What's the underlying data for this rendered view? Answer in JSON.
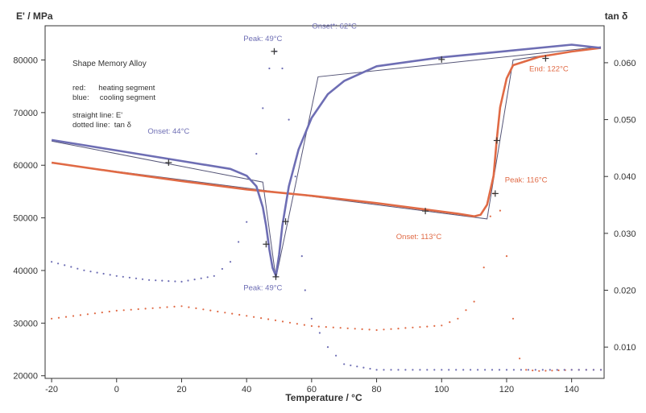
{
  "chart_data": {
    "type": "line",
    "y_left_label": "E' / MPa",
    "y_right_label": "tan δ",
    "xlabel": "Temperature / °C",
    "xlim": [
      -22,
      150
    ],
    "ylim_left": [
      19500,
      86500
    ],
    "ylim_right": [
      0.0045,
      0.0665
    ],
    "x_ticks": [
      -20,
      0,
      20,
      40,
      60,
      80,
      100,
      120,
      140
    ],
    "y_left_ticks": [
      20000,
      30000,
      40000,
      50000,
      60000,
      70000,
      80000
    ],
    "y_right_ticks": [
      0.01,
      0.02,
      0.03,
      0.04,
      0.05,
      0.06
    ],
    "y_left_tick_labels": [
      "20000",
      "30000",
      "40000",
      "50000",
      "60000",
      "70000",
      "80000"
    ],
    "y_right_tick_labels": [
      "0.010",
      "0.020",
      "0.030",
      "0.040",
      "0.050",
      "0.060"
    ],
    "legend": {
      "title": "Shape Memory Alloy",
      "lines": [
        "red:      heating segment",
        "blue:     cooling segment",
        "",
        "straight line: E'",
        "dotted line:  tan δ"
      ]
    },
    "colors": {
      "heating": "#e06a45",
      "cooling": "#6e6eb4",
      "tangent": "#555577"
    },
    "series": [
      {
        "name": "heating E'",
        "x": [
          -20,
          0,
          20,
          40,
          60,
          80,
          95,
          105,
          110,
          112,
          114,
          116,
          117,
          118,
          120,
          122,
          130,
          140,
          149
        ],
        "y": [
          60500,
          58700,
          57000,
          55400,
          54200,
          52800,
          51600,
          50800,
          50300,
          50600,
          52500,
          58000,
          65000,
          71000,
          76500,
          79000,
          80600,
          81600,
          82300
        ]
      },
      {
        "name": "cooling E'",
        "x": [
          -20,
          0,
          20,
          35,
          40,
          43,
          45,
          46,
          47,
          48,
          49,
          50,
          51,
          53,
          56,
          60,
          65,
          70,
          80,
          100,
          120,
          140,
          149
        ],
        "y": [
          64800,
          62800,
          60800,
          59300,
          58000,
          56000,
          52000,
          48500,
          44000,
          40500,
          39000,
          43000,
          48500,
          56000,
          63000,
          69000,
          73500,
          76000,
          78800,
          80500,
          81700,
          82900,
          82300
        ]
      },
      {
        "name": "heating tan δ",
        "x": [
          -20,
          0,
          20,
          40,
          60,
          80,
          100,
          105,
          110,
          113,
          115,
          116,
          118,
          120,
          122,
          124,
          126,
          130,
          140,
          149
        ],
        "y": [
          0.015,
          0.0164,
          0.0172,
          0.0155,
          0.0137,
          0.013,
          0.0138,
          0.015,
          0.018,
          0.024,
          0.033,
          0.037,
          0.034,
          0.026,
          0.015,
          0.008,
          0.006,
          0.0058,
          0.006,
          0.006
        ]
      },
      {
        "name": "cooling tan δ",
        "x": [
          -20,
          -10,
          0,
          10,
          20,
          30,
          35,
          40,
          43,
          45,
          47,
          49,
          51,
          53,
          55,
          57,
          58,
          60,
          65,
          70,
          80,
          100,
          120,
          140,
          149
        ],
        "y": [
          0.025,
          0.0235,
          0.0225,
          0.0218,
          0.0215,
          0.0225,
          0.025,
          0.032,
          0.044,
          0.052,
          0.059,
          0.062,
          0.059,
          0.05,
          0.04,
          0.026,
          0.02,
          0.015,
          0.01,
          0.007,
          0.006,
          0.006,
          0.006,
          0.006,
          0.006
        ]
      }
    ],
    "tangent_lines": [
      {
        "name": "cooling onset tangents",
        "axis": "left",
        "x": [
          -20,
          45,
          49,
          62,
          149
        ],
        "y": [
          64600,
          56800,
          38500,
          76800,
          82500
        ]
      },
      {
        "name": "heating onset tangents",
        "axis": "left",
        "x": [
          -20,
          114,
          122,
          149
        ],
        "y": [
          60400,
          49800,
          80000,
          82400
        ]
      }
    ],
    "markers": [
      {
        "axis": "left",
        "x": 16,
        "y": 60500,
        "color": "#333333"
      },
      {
        "axis": "left",
        "x": 46,
        "y": 45000,
        "color": "#333333"
      },
      {
        "axis": "left",
        "x": 49,
        "y": 38800,
        "color": "#333333"
      },
      {
        "axis": "left",
        "x": 52,
        "y": 49300,
        "color": "#333333"
      },
      {
        "axis": "left",
        "x": 100,
        "y": 80100,
        "color": "#333333"
      },
      {
        "axis": "left",
        "x": 132,
        "y": 80300,
        "color": "#333333"
      },
      {
        "axis": "left",
        "x": 95,
        "y": 51300,
        "color": "#333333"
      },
      {
        "axis": "left",
        "x": 117,
        "y": 64700,
        "color": "#333333"
      },
      {
        "axis": "right",
        "x": 48.5,
        "y": 0.062,
        "color": "#333333"
      },
      {
        "axis": "right",
        "x": 116.5,
        "y": 0.037,
        "color": "#333333"
      }
    ],
    "annotations": [
      {
        "text": "Peak: 49°C",
        "color": "#6e6eb4",
        "x": 45,
        "y_right": 0.0638
      },
      {
        "text": "Onset*: 62°C",
        "color": "#6e6eb4",
        "x": 67,
        "y_right": 0.066
      },
      {
        "text": "Onset: 44°C",
        "color": "#6e6eb4",
        "x": 16,
        "y_right": 0.0475
      },
      {
        "text": "Peak: 49°C",
        "color": "#6e6eb4",
        "x": 45,
        "y_right": 0.02
      },
      {
        "text": "End: 122°C",
        "color": "#e06a45",
        "x": 133,
        "y_right": 0.0585
      },
      {
        "text": "Peak: 116°C",
        "color": "#e06a45",
        "x": 126,
        "y_right": 0.039
      },
      {
        "text": "Onset: 113°C",
        "color": "#e06a45",
        "x": 93,
        "y_right": 0.029
      }
    ]
  }
}
